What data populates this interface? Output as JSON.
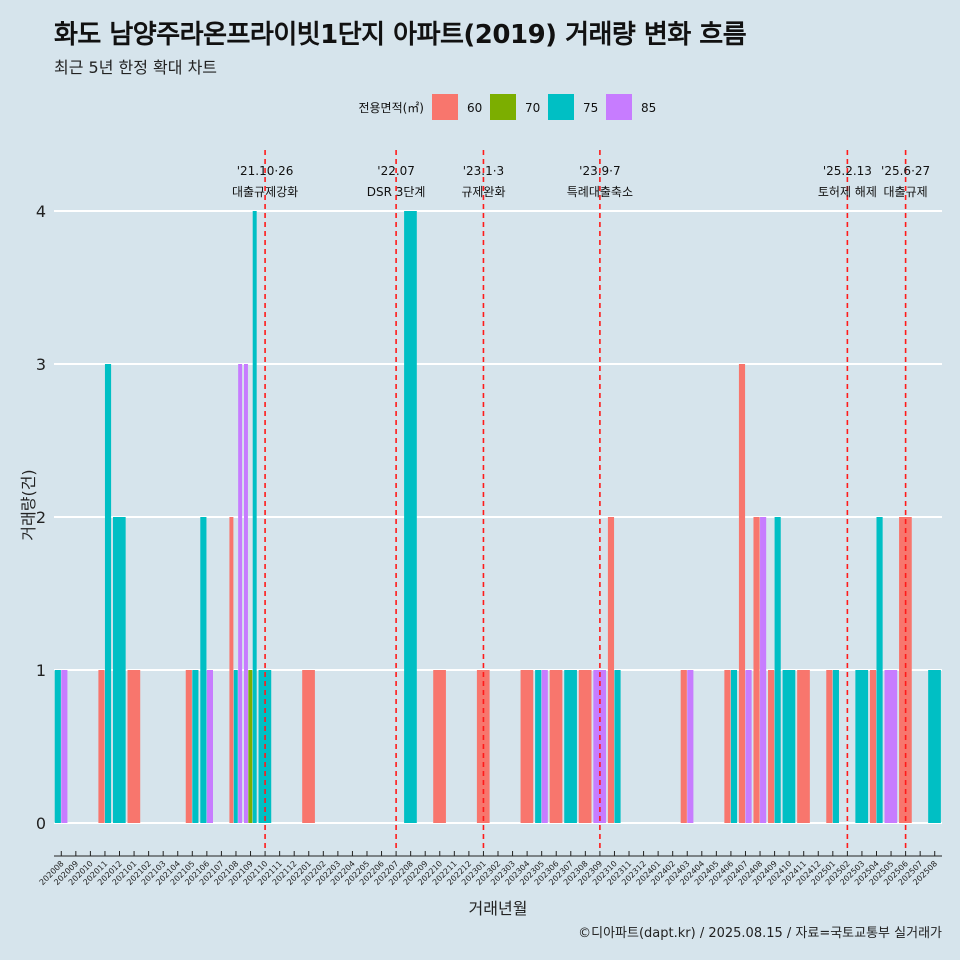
{
  "title": "화도 남양주라온프라이빗1단지 아파트(2019) 거래량 변화 흐름",
  "subtitle": "최근 5년 한정 확대 차트",
  "caption": "©디아파트(dapt.kr) / 2025.08.15 / 자료=국토교통부 실거래가",
  "chart_data": {
    "type": "bar",
    "xlabel": "거래년월",
    "ylabel": "거래량(건)",
    "ylim": [
      0,
      4
    ],
    "yticks": [
      0,
      1,
      2,
      3,
      4
    ],
    "grid": true,
    "legend": {
      "title": "전용면적(㎡)",
      "position": "top",
      "entries": [
        "60",
        "70",
        "75",
        "85"
      ]
    },
    "colors": {
      "60": "#F8766D",
      "70": "#7CAE00",
      "75": "#00BFC4",
      "85": "#C77CFF"
    },
    "categories": [
      "202008",
      "202009",
      "202010",
      "202011",
      "202012",
      "202101",
      "202102",
      "202103",
      "202104",
      "202105",
      "202106",
      "202107",
      "202108",
      "202109",
      "202110",
      "202111",
      "202112",
      "202201",
      "202202",
      "202203",
      "202204",
      "202205",
      "202206",
      "202207",
      "202208",
      "202209",
      "202210",
      "202211",
      "202212",
      "202301",
      "202302",
      "202303",
      "202304",
      "202305",
      "202306",
      "202307",
      "202308",
      "202309",
      "202310",
      "202311",
      "202312",
      "202401",
      "202402",
      "202403",
      "202404",
      "202405",
      "202406",
      "202407",
      "202408",
      "202409",
      "202410",
      "202411",
      "202412",
      "202501",
      "202502",
      "202503",
      "202504",
      "202505",
      "202506",
      "202507",
      "202508"
    ],
    "bars": [
      {
        "month": "202008",
        "area": "75",
        "value": 1
      },
      {
        "month": "202008",
        "area": "85",
        "value": 1
      },
      {
        "month": "202011",
        "area": "60",
        "value": 1
      },
      {
        "month": "202011",
        "area": "75",
        "value": 3
      },
      {
        "month": "202012",
        "area": "75",
        "value": 2
      },
      {
        "month": "202101",
        "area": "60",
        "value": 1
      },
      {
        "month": "202105",
        "area": "60",
        "value": 1
      },
      {
        "month": "202105",
        "area": "75",
        "value": 1
      },
      {
        "month": "202106",
        "area": "75",
        "value": 2
      },
      {
        "month": "202106",
        "area": "85",
        "value": 1
      },
      {
        "month": "202108",
        "area": "60",
        "value": 2
      },
      {
        "month": "202108",
        "area": "75",
        "value": 1
      },
      {
        "month": "202108",
        "area": "85",
        "value": 3
      },
      {
        "month": "202109",
        "area": "85",
        "value": 3
      },
      {
        "month": "202109",
        "area": "70",
        "value": 1
      },
      {
        "month": "202109",
        "area": "75",
        "value": 4
      },
      {
        "month": "202110",
        "area": "75",
        "value": 1
      },
      {
        "month": "202201",
        "area": "60",
        "value": 1
      },
      {
        "month": "202208",
        "area": "75",
        "value": 4
      },
      {
        "month": "202210",
        "area": "60",
        "value": 1
      },
      {
        "month": "202301",
        "area": "60",
        "value": 1
      },
      {
        "month": "202304",
        "area": "60",
        "value": 1
      },
      {
        "month": "202305",
        "area": "75",
        "value": 1
      },
      {
        "month": "202305",
        "area": "85",
        "value": 1
      },
      {
        "month": "202306",
        "area": "60",
        "value": 1
      },
      {
        "month": "202307",
        "area": "75",
        "value": 1
      },
      {
        "month": "202308",
        "area": "60",
        "value": 1
      },
      {
        "month": "202309",
        "area": "85",
        "value": 1
      },
      {
        "month": "202310",
        "area": "60",
        "value": 2
      },
      {
        "month": "202310",
        "area": "75",
        "value": 1
      },
      {
        "month": "202403",
        "area": "60",
        "value": 1
      },
      {
        "month": "202403",
        "area": "85",
        "value": 1
      },
      {
        "month": "202406",
        "area": "60",
        "value": 1
      },
      {
        "month": "202406",
        "area": "75",
        "value": 1
      },
      {
        "month": "202407",
        "area": "60",
        "value": 3
      },
      {
        "month": "202407",
        "area": "85",
        "value": 1
      },
      {
        "month": "202408",
        "area": "60",
        "value": 2
      },
      {
        "month": "202408",
        "area": "85",
        "value": 2
      },
      {
        "month": "202409",
        "area": "60",
        "value": 1
      },
      {
        "month": "202409",
        "area": "75",
        "value": 2
      },
      {
        "month": "202410",
        "area": "75",
        "value": 1
      },
      {
        "month": "202411",
        "area": "60",
        "value": 1
      },
      {
        "month": "202501",
        "area": "60",
        "value": 1
      },
      {
        "month": "202501",
        "area": "75",
        "value": 1
      },
      {
        "month": "202503",
        "area": "75",
        "value": 1
      },
      {
        "month": "202504",
        "area": "60",
        "value": 1
      },
      {
        "month": "202504",
        "area": "75",
        "value": 2
      },
      {
        "month": "202505",
        "area": "85",
        "value": 1
      },
      {
        "month": "202506",
        "area": "60",
        "value": 2
      },
      {
        "month": "202508",
        "area": "75",
        "value": 1
      }
    ],
    "annotations": [
      {
        "date": "'21.10·26",
        "label": "대출규제강화",
        "month": "202110"
      },
      {
        "date": "'22.07",
        "label": "DSR 3단계",
        "month": "202207"
      },
      {
        "date": "'23.1·3",
        "label": "규제완화",
        "month": "202301"
      },
      {
        "date": "'23.9·7",
        "label": "특례대출축소",
        "month": "202309"
      },
      {
        "date": "'25.2.13",
        "label": "토허제 해제",
        "month": "202502"
      },
      {
        "date": "'25.6·27",
        "label": "대출규제",
        "month": "202506"
      }
    ]
  }
}
